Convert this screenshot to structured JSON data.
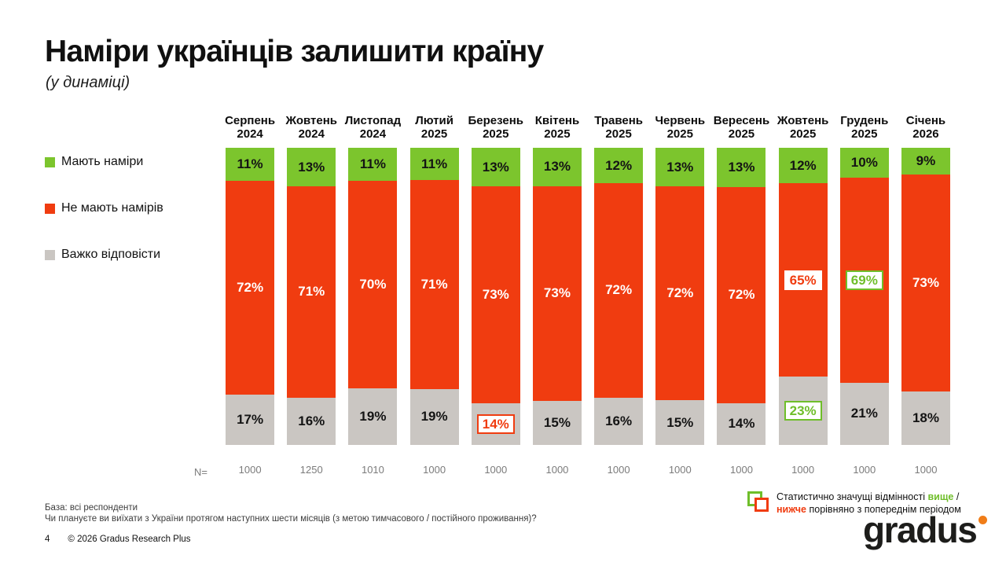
{
  "slide": {
    "title": "Наміри українців залишити країну",
    "subtitle": "(у динаміці)",
    "page_number": "4",
    "copyright": "© 2026 Gradus Research Plus",
    "base_note": "База: всі респонденти",
    "question_note": "Чи плануєте ви виїхати з України протягом наступних шести місяців (з метою тимчасового / постійного проживання)?",
    "logo_text": "gradus"
  },
  "colors": {
    "green": "#7CC52D",
    "red": "#F03C10",
    "gray": "#CAC6C2",
    "highlight_green": "#6FBE2A",
    "logo_dot": "#F07D18"
  },
  "legend": [
    {
      "label": "Мають наміри",
      "color": "#7CC52D"
    },
    {
      "label": "Не мають намірів",
      "color": "#F03C10"
    },
    {
      "label": "Важко відповісти",
      "color": "#CAC6C2"
    }
  ],
  "significance": {
    "text_before": "Статистично значущі відмінності ",
    "higher_word": "вище",
    "slash": " /",
    "lower_word": "нижче",
    "text_after": " порівняно з попереднім періодом"
  },
  "chart_data": {
    "type": "bar",
    "subtype": "stacked-100-percent",
    "title": "Наміри українців залишити країну (у динаміці)",
    "unit": "%",
    "ylim": [
      0,
      100
    ],
    "legend_position": "left",
    "grid": false,
    "segment_order_top_to_bottom": [
      "Мають наміри",
      "Не мають намірів",
      "Важко відповісти"
    ],
    "categories": [
      "Серпень 2024",
      "Жовтень 2024",
      "Листопад 2024",
      "Лютий 2025",
      "Березень 2025",
      "Квітень 2025",
      "Травень 2025",
      "Червень 2025",
      "Вересень 2025",
      "Жовтень 2025",
      "Грудень 2025",
      "Січень 2026"
    ],
    "series": [
      {
        "key": "have-intentions",
        "name": "Мають наміри",
        "color": "#7CC52D",
        "values": [
          11,
          13,
          11,
          11,
          13,
          13,
          12,
          13,
          13,
          12,
          10,
          9
        ]
      },
      {
        "key": "no-intentions",
        "name": "Не мають намірів",
        "color": "#F03C10",
        "values": [
          72,
          71,
          70,
          71,
          73,
          73,
          72,
          72,
          72,
          65,
          69,
          73
        ]
      },
      {
        "key": "hard-to-answer",
        "name": "Важко відповісти",
        "color": "#CAC6C2",
        "values": [
          17,
          16,
          19,
          19,
          14,
          15,
          16,
          15,
          14,
          23,
          21,
          18
        ]
      }
    ],
    "n_row_label": "N=",
    "n_values": [
      "1000",
      "1250",
      "1010",
      "1000",
      "1000",
      "1000",
      "1000",
      "1000",
      "1000",
      "1000",
      "1000",
      "1000"
    ],
    "label_overrides": [
      {
        "col": 4,
        "series": 2,
        "style": "box-down",
        "meaning": "значуще нижче порівняно з попереднім періодом",
        "value": 14
      },
      {
        "col": 9,
        "series": 1,
        "style": "box-down-plain",
        "meaning": "значуще нижче порівняно з попереднім періодом",
        "value": 65
      },
      {
        "col": 9,
        "series": 2,
        "style": "box-up",
        "meaning": "значуще вище порівняно з попереднім періодом",
        "value": 23
      },
      {
        "col": 10,
        "series": 1,
        "style": "box-up",
        "meaning": "значуще вище порівняно з попереднім періодом",
        "value": 69
      }
    ]
  }
}
